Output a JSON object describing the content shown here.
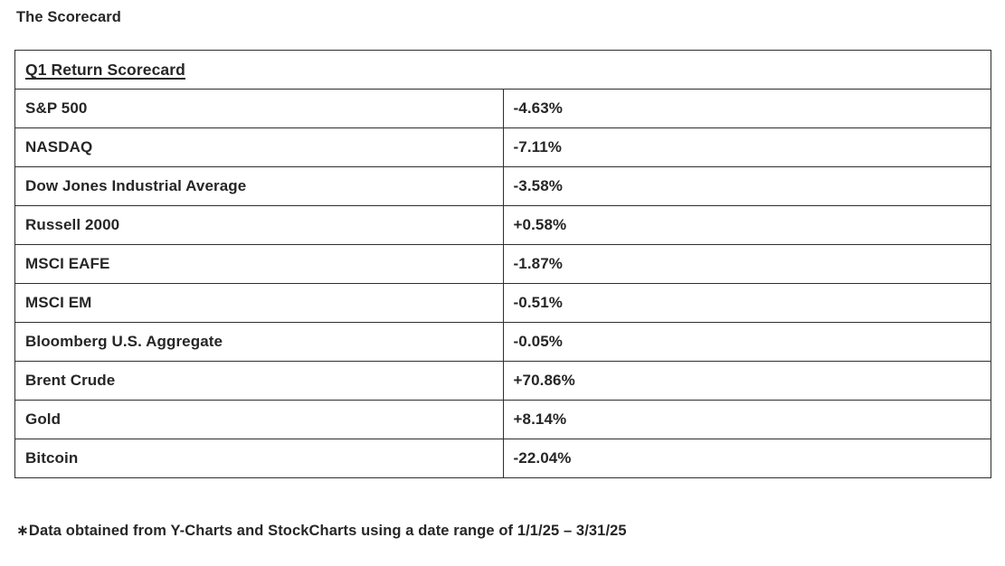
{
  "page": {
    "title": "The Scorecard",
    "footnote": "∗Data obtained from Y-Charts and StockCharts using a date range of 1/1/25 – 3/31/25"
  },
  "colors": {
    "text": "#262626",
    "border": "#2e2e2e",
    "background": "#ffffff"
  },
  "chart_data": {
    "type": "table",
    "title": "Q1 Return Scorecard",
    "rows": [
      {
        "label": "S&P 500",
        "value": "-4.63%"
      },
      {
        "label": "NASDAQ",
        "value": "-7.11%"
      },
      {
        "label": "Dow Jones Industrial Average",
        "value": "-3.58%"
      },
      {
        "label": "Russell 2000",
        "value": "+0.58%"
      },
      {
        "label": "MSCI EAFE",
        "value": "-1.87%"
      },
      {
        "label": "MSCI EM",
        "value": "-0.51%"
      },
      {
        "label": "Bloomberg U.S. Aggregate",
        "value": "-0.05%"
      },
      {
        "label": "Brent Crude",
        "value": "+70.86%"
      },
      {
        "label": "Gold",
        "value": "+8.14%"
      },
      {
        "label": "Bitcoin",
        "value": "-22.04%"
      }
    ]
  }
}
